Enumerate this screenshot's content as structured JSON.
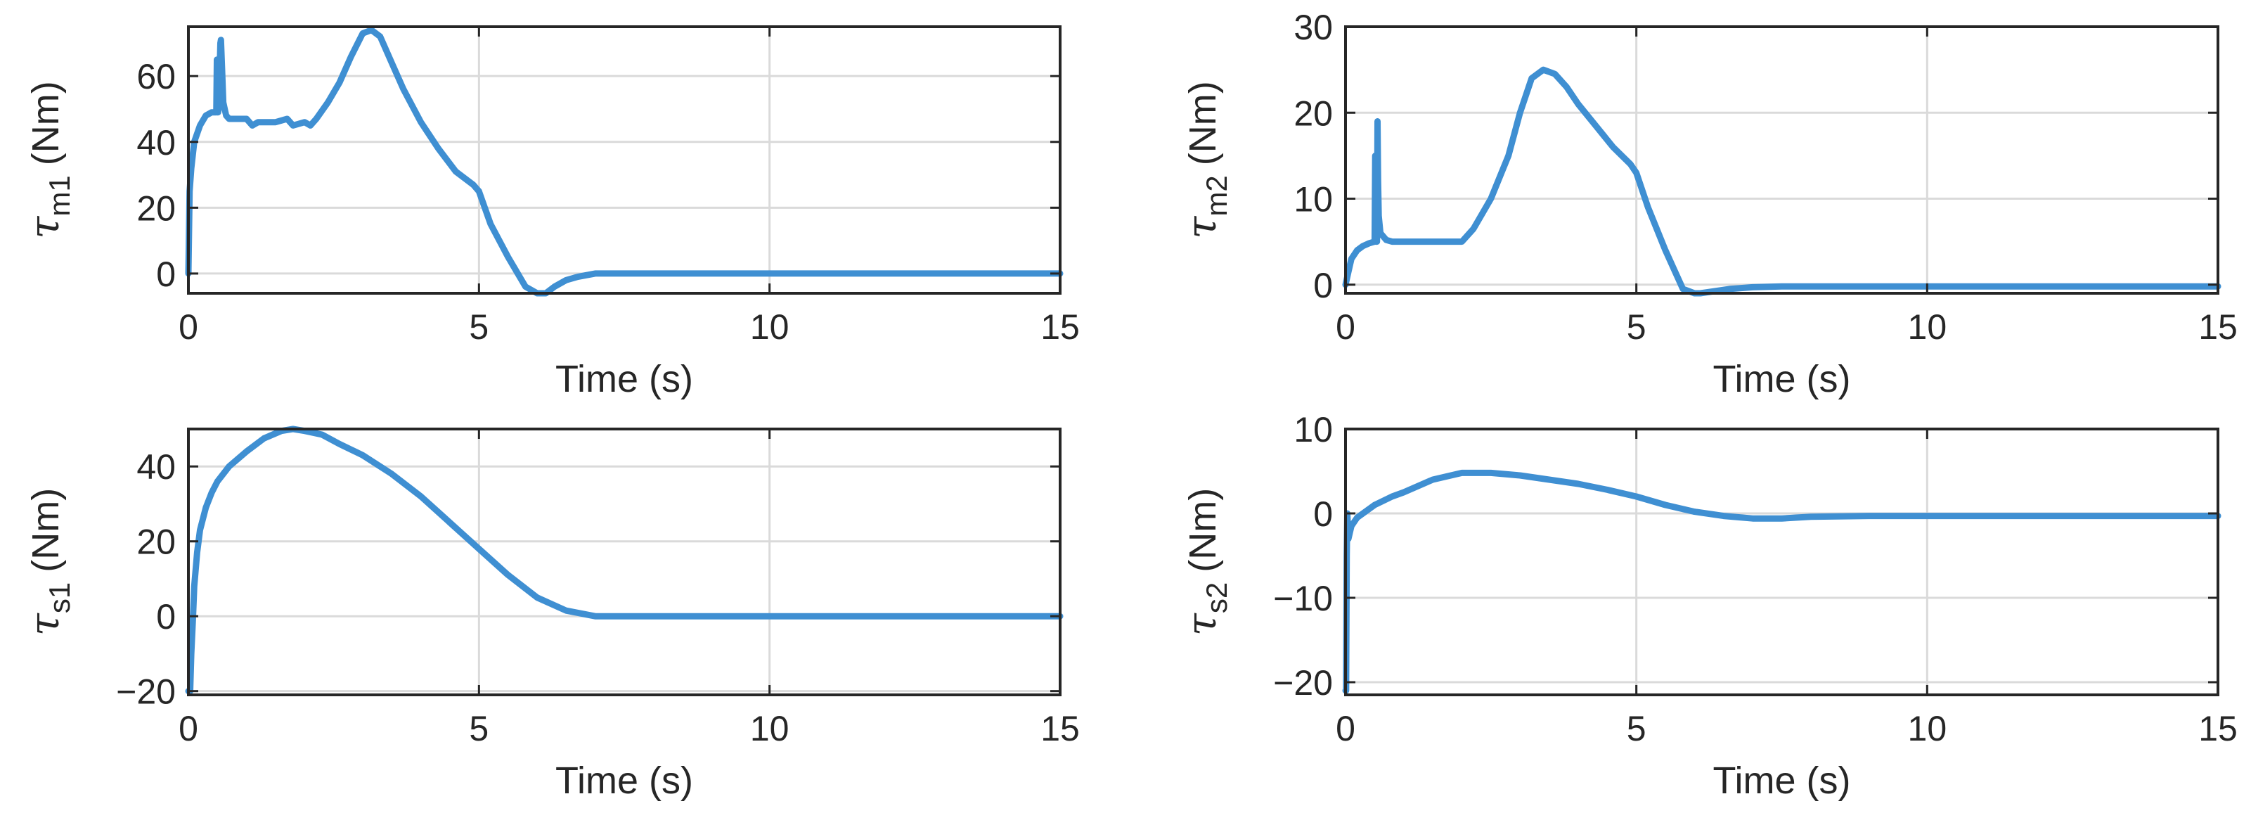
{
  "chart_data": [
    {
      "type": "line",
      "xlabel": "Time (s)",
      "ylabel": {
        "symbol": "τ",
        "subscript": "m1",
        "unit": "(Nm)"
      },
      "xlim": [
        0,
        15
      ],
      "ylim": [
        -6,
        75
      ],
      "xticks": [
        0,
        5,
        10,
        15
      ],
      "yticks": [
        0,
        20,
        40,
        60
      ],
      "grid": true,
      "series": [
        {
          "color": "#3f8fd2",
          "x": [
            0,
            0.02,
            0.05,
            0.1,
            0.2,
            0.3,
            0.4,
            0.45,
            0.48,
            0.49,
            0.5,
            0.51,
            0.52,
            0.55,
            0.56,
            0.58,
            0.6,
            0.65,
            0.7,
            0.8,
            1.0,
            1.1,
            1.2,
            1.5,
            1.7,
            1.8,
            2.0,
            2.1,
            2.2,
            2.4,
            2.6,
            2.8,
            3.0,
            3.15,
            3.3,
            3.5,
            3.7,
            4.0,
            4.3,
            4.6,
            4.9,
            5.0,
            5.2,
            5.5,
            5.8,
            6.0,
            6.15,
            6.3,
            6.5,
            6.7,
            7.0,
            7.5,
            8.0,
            9.0,
            10.0,
            12.0,
            15.0
          ],
          "y": [
            0,
            25,
            32,
            40,
            45,
            48,
            49,
            49,
            49,
            65,
            49,
            49,
            50,
            70,
            71,
            62,
            52,
            48,
            47,
            47,
            47,
            45,
            46,
            46,
            47,
            45,
            46,
            45,
            47,
            52,
            58,
            66,
            73,
            74,
            72,
            64,
            56,
            46,
            38,
            31,
            27,
            25,
            15,
            5,
            -4,
            -6,
            -6,
            -4,
            -2,
            -1,
            0,
            0,
            0,
            0,
            0,
            0,
            0
          ]
        }
      ]
    },
    {
      "type": "line",
      "xlabel": "Time (s)",
      "ylabel": {
        "symbol": "τ",
        "subscript": "m2",
        "unit": "(Nm)"
      },
      "xlim": [
        0,
        15
      ],
      "ylim": [
        -1,
        30
      ],
      "xticks": [
        0,
        5,
        10,
        15
      ],
      "yticks": [
        0,
        10,
        20,
        30
      ],
      "grid": true,
      "series": [
        {
          "color": "#3f8fd2",
          "x": [
            0,
            0.05,
            0.1,
            0.2,
            0.3,
            0.4,
            0.5,
            0.51,
            0.52,
            0.54,
            0.55,
            0.56,
            0.57,
            0.6,
            0.7,
            0.8,
            1.0,
            1.5,
            2.0,
            2.2,
            2.5,
            2.8,
            3.0,
            3.2,
            3.4,
            3.6,
            3.8,
            4.0,
            4.3,
            4.6,
            4.9,
            5.0,
            5.2,
            5.5,
            5.8,
            6.0,
            6.1,
            6.3,
            6.6,
            7.0,
            7.5,
            8.0,
            10.0,
            12.0,
            15.0
          ],
          "y": [
            0,
            1.5,
            3,
            4,
            4.5,
            4.8,
            5,
            15,
            5,
            5,
            19,
            12,
            8,
            6,
            5.2,
            5,
            5,
            5,
            5,
            6.5,
            10,
            15,
            20,
            24,
            25,
            24.5,
            23,
            21,
            18.5,
            16,
            14,
            13,
            9,
            4,
            -0.5,
            -1,
            -1,
            -0.8,
            -0.5,
            -0.3,
            -0.2,
            -0.2,
            -0.2,
            -0.2,
            -0.2
          ]
        }
      ]
    },
    {
      "type": "line",
      "xlabel": "Time (s)",
      "ylabel": {
        "symbol": "τ",
        "subscript": "s1",
        "unit": "(Nm)"
      },
      "xlim": [
        0,
        15
      ],
      "ylim": [
        -21,
        50
      ],
      "xticks": [
        0,
        5,
        10,
        15
      ],
      "yticks": [
        -20,
        0,
        20,
        40
      ],
      "grid": true,
      "series": [
        {
          "color": "#3f8fd2",
          "x": [
            0,
            0.03,
            0.05,
            0.08,
            0.1,
            0.15,
            0.2,
            0.3,
            0.4,
            0.5,
            0.7,
            1.0,
            1.3,
            1.6,
            1.8,
            2.0,
            2.3,
            2.6,
            3.0,
            3.5,
            4.0,
            4.5,
            5.0,
            5.5,
            6.0,
            6.5,
            7.0,
            7.3,
            7.5,
            8.0,
            9.0,
            10.0,
            12.0,
            15.0
          ],
          "y": [
            -20,
            -20,
            -10,
            0,
            8,
            17,
            23,
            29,
            33,
            36,
            40,
            44,
            47.5,
            49.5,
            50,
            49.5,
            48.5,
            46,
            43,
            38,
            32,
            25,
            18,
            11,
            5,
            1.5,
            0,
            0,
            0,
            0,
            0,
            0,
            0,
            0
          ]
        }
      ]
    },
    {
      "type": "line",
      "xlabel": "Time (s)",
      "ylabel": {
        "symbol": "τ",
        "subscript": "s2",
        "unit": "(Nm)"
      },
      "xlim": [
        0,
        15
      ],
      "ylim": [
        -21.5,
        10
      ],
      "xticks": [
        0,
        5,
        10,
        15
      ],
      "yticks": [
        -20,
        -10,
        0,
        10
      ],
      "grid": true,
      "series": [
        {
          "color": "#3f8fd2",
          "x": [
            0,
            0.01,
            0.02,
            0.03,
            0.05,
            0.1,
            0.2,
            0.3,
            0.5,
            0.8,
            1.0,
            1.5,
            2.0,
            2.5,
            3.0,
            3.5,
            4.0,
            4.5,
            5.0,
            5.5,
            6.0,
            6.5,
            7.0,
            7.5,
            8.0,
            9.0,
            10.0,
            12.0,
            15.0
          ],
          "y": [
            -21,
            -21,
            -5,
            0,
            -3,
            -1.5,
            -0.5,
            0,
            1,
            2,
            2.5,
            4,
            4.8,
            4.8,
            4.5,
            4,
            3.5,
            2.8,
            2,
            1,
            0.2,
            -0.3,
            -0.6,
            -0.6,
            -0.4,
            -0.3,
            -0.3,
            -0.3,
            -0.3
          ]
        }
      ]
    }
  ]
}
